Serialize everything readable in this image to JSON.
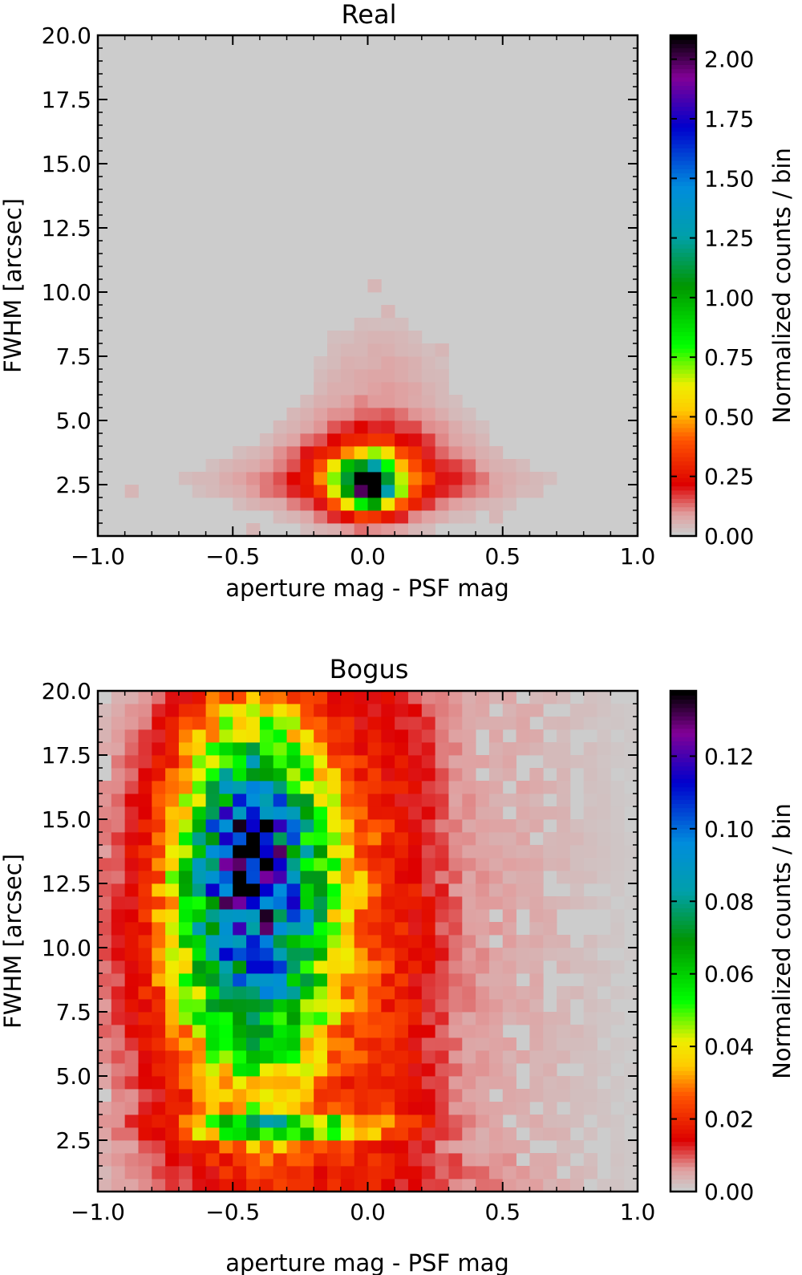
{
  "chart_data": [
    {
      "type": "heatmap",
      "title": "Real",
      "xlabel": "aperture mag - PSF mag",
      "ylabel": "FWHM [arcsec]",
      "xlim": [
        -1.0,
        1.0
      ],
      "ylim": [
        0.5,
        20.0
      ],
      "xticks": [
        -1.0,
        -0.5,
        0.0,
        0.5,
        1.0
      ],
      "xtick_labels": [
        "−1.0",
        "−0.5",
        "0.0",
        "0.5",
        "1.0"
      ],
      "yticks": [
        2.5,
        5.0,
        7.5,
        10.0,
        12.5,
        15.0,
        17.5,
        20.0
      ],
      "ytick_labels": [
        "2.5",
        "5.0",
        "7.5",
        "10.0",
        "12.5",
        "15.0",
        "17.5",
        "20.0"
      ],
      "background_color": "#cccccc",
      "bins": {
        "x": 40,
        "y": 39,
        "bin_width_x": 0.05,
        "bin_width_y": 0.5
      },
      "colorbar": {
        "label": "Normalized counts / bin",
        "range": [
          0.0,
          2.1
        ],
        "ticks": [
          0.0,
          0.25,
          0.5,
          0.75,
          1.0,
          1.25,
          1.5,
          1.75,
          2.0
        ],
        "tick_labels": [
          "0.00",
          "0.25",
          "0.50",
          "0.75",
          "1.00",
          "1.25",
          "1.50",
          "1.75",
          "2.00"
        ],
        "colormap": "nipy_spectral_r (light gray → red → orange → yellow → green → cyan → blue → purple → black)"
      },
      "grid": false,
      "features": [
        {
          "x": 0.0,
          "y": 2.5,
          "value": 2.1
        },
        {
          "x": -0.1,
          "y": 2.5,
          "value": 0.7
        },
        {
          "x": 0.1,
          "y": 2.5,
          "value": 0.7
        },
        {
          "x": 0.0,
          "y": 3.0,
          "value": 0.9
        },
        {
          "x": 0.0,
          "y": 4.0,
          "value": 0.2
        },
        {
          "x": 0.0,
          "y": 5.0,
          "value": 0.15
        },
        {
          "x": -0.3,
          "y": 2.5,
          "value": 0.2
        },
        {
          "x": 0.3,
          "y": 2.5,
          "value": 0.2
        },
        {
          "x": -0.8,
          "y": 2.5,
          "value": 0.02
        },
        {
          "x": 0.1,
          "y": 9.0,
          "value": 0.02
        }
      ]
    },
    {
      "type": "heatmap",
      "title": "Bogus",
      "xlabel": "aperture mag - PSF mag",
      "ylabel": "FWHM [arcsec]",
      "xlim": [
        -1.0,
        1.0
      ],
      "ylim": [
        0.5,
        20.0
      ],
      "xticks": [
        -1.0,
        -0.5,
        0.0,
        0.5,
        1.0
      ],
      "xtick_labels": [
        "−1.0",
        "−0.5",
        "0.0",
        "0.5",
        "1.0"
      ],
      "yticks": [
        2.5,
        5.0,
        7.5,
        10.0,
        12.5,
        15.0,
        17.5,
        20.0
      ],
      "ytick_labels": [
        "2.5",
        "5.0",
        "7.5",
        "10.0",
        "12.5",
        "15.0",
        "17.5",
        "20.0"
      ],
      "background_color": "#cccccc",
      "bins": {
        "x": 40,
        "y": 39,
        "bin_width_x": 0.05,
        "bin_width_y": 0.5
      },
      "colorbar": {
        "label": "Normalized counts / bin",
        "range": [
          0.0,
          0.138
        ],
        "ticks": [
          0.0,
          0.02,
          0.04,
          0.06,
          0.08,
          0.1,
          0.12
        ],
        "tick_labels": [
          "0.00",
          "0.02",
          "0.04",
          "0.06",
          "0.08",
          "0.10",
          "0.12"
        ],
        "colormap": "nipy_spectral_r (light gray → red → orange → yellow → green → cyan → blue → purple → black)"
      },
      "grid": false,
      "features": [
        {
          "x": -0.42,
          "y": 15.3,
          "value": 0.138
        },
        {
          "x": -0.45,
          "y": 13.5,
          "value": 0.11
        },
        {
          "x": -0.4,
          "y": 11.0,
          "value": 0.08
        },
        {
          "x": -0.4,
          "y": 7.0,
          "value": 0.06
        },
        {
          "x": -0.35,
          "y": 3.0,
          "value": 0.065
        },
        {
          "x": -0.8,
          "y": 10.0,
          "value": 0.035
        },
        {
          "x": -0.05,
          "y": 10.0,
          "value": 0.035
        },
        {
          "x": 0.1,
          "y": 10.0,
          "value": 0.012
        },
        {
          "x": 0.6,
          "y": 10.0,
          "value": 0.004
        },
        {
          "x": 0.0,
          "y": 1.5,
          "value": 0.012
        },
        {
          "x": -0.9,
          "y": 18.0,
          "value": 0.015
        }
      ]
    }
  ]
}
